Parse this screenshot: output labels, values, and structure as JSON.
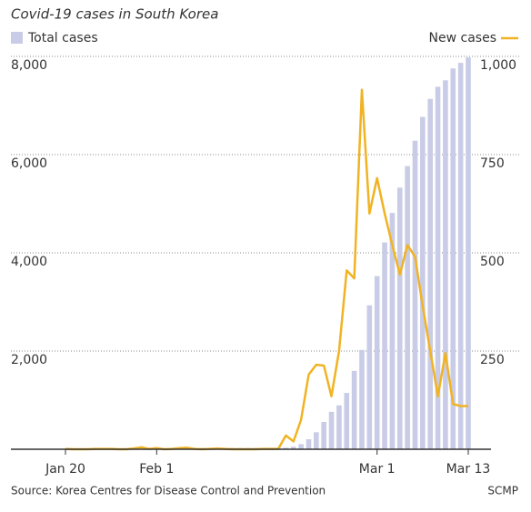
{
  "chart_data": {
    "type": "combo",
    "title": "Covid-19 cases in South Korea",
    "source": "Source: Korea Centres for Disease Control and Prevention",
    "credit": "SCMP",
    "categories": [
      "Jan 20",
      null,
      null,
      null,
      null,
      null,
      null,
      null,
      null,
      null,
      null,
      null,
      "Feb 1",
      null,
      null,
      null,
      null,
      null,
      null,
      null,
      null,
      null,
      null,
      null,
      null,
      null,
      null,
      null,
      null,
      null,
      null,
      null,
      null,
      null,
      null,
      null,
      null,
      null,
      null,
      null,
      null,
      "Mar 1",
      null,
      null,
      null,
      null,
      null,
      null,
      null,
      null,
      null,
      null,
      null,
      "Mar 13"
    ],
    "series": [
      {
        "name": "Total cases",
        "type": "bar",
        "axis": "y",
        "color": "#c9cce6",
        "values": [
          1,
          1,
          1,
          1,
          2,
          3,
          4,
          4,
          4,
          6,
          11,
          12,
          15,
          15,
          16,
          19,
          23,
          24,
          24,
          25,
          27,
          28,
          28,
          28,
          28,
          28,
          29,
          30,
          31,
          31,
          51,
          104,
          204,
          346,
          556,
          763,
          893,
          1146,
          1595,
          2022,
          2931,
          3526,
          4212,
          4812,
          5328,
          5766,
          6284,
          6767,
          7134,
          7382,
          7513,
          7755,
          7869,
          7979
        ]
      },
      {
        "name": "New cases",
        "type": "line",
        "axis": "y2",
        "color": "#f0b323",
        "values": [
          1,
          0,
          0,
          0,
          1,
          1,
          1,
          0,
          0,
          2,
          5,
          1,
          3,
          0,
          1,
          3,
          4,
          1,
          0,
          1,
          2,
          1,
          0,
          0,
          0,
          0,
          1,
          1,
          1,
          35,
          20,
          75,
          190,
          215,
          213,
          135,
          250,
          455,
          435,
          915,
          600,
          690,
          600,
          520,
          445,
          520,
          490,
          365,
          250,
          135,
          245,
          115,
          110,
          110
        ]
      }
    ],
    "ylim": [
      0,
      8000
    ],
    "yticks": [
      {
        "value": 2000,
        "label": "2,000"
      },
      {
        "value": 4000,
        "label": "4,000"
      },
      {
        "value": 6000,
        "label": "6,000"
      },
      {
        "value": 8000,
        "label": "8,000"
      }
    ],
    "y2lim": [
      0,
      1000
    ],
    "y2ticks": [
      250,
      500,
      750,
      {
        "value": 1000,
        "label": "1,000"
      }
    ],
    "grid": true
  }
}
